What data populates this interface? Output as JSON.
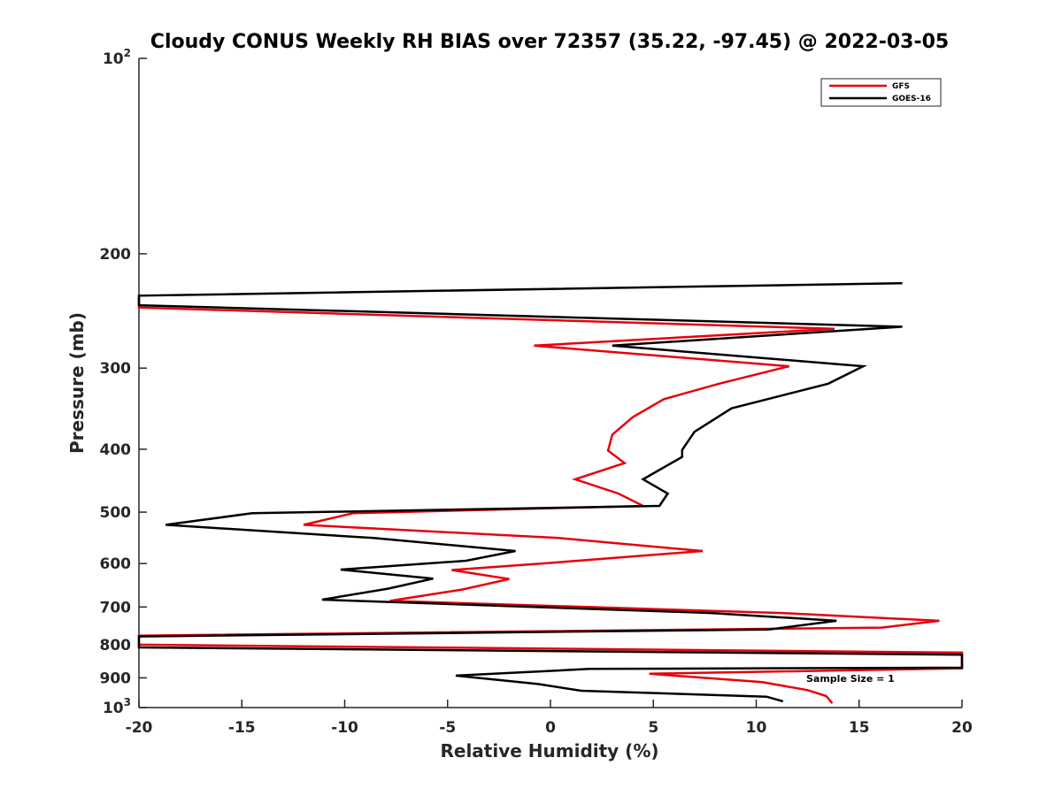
{
  "chart_data": {
    "type": "line",
    "title": "Cloudy CONUS Weekly RH BIAS over 72357 (35.22, -97.45) @ 2022-03-05",
    "xlabel": "Relative Humidity (%)",
    "ylabel": "Pressure (mb)",
    "xlim": [
      -20,
      20
    ],
    "ylim": [
      100,
      1000
    ],
    "y_scale": "log",
    "y_reversed": true,
    "grid": false,
    "legend_position": "top-right",
    "x_ticks": [
      "-20",
      "-15",
      "-10",
      "-5",
      "0",
      "5",
      "10",
      "15",
      "20"
    ],
    "y_ticks": [
      {
        "value": 100,
        "base": "10",
        "exp": "2"
      },
      {
        "value": 200,
        "label": "200"
      },
      {
        "value": 300,
        "label": "300"
      },
      {
        "value": 400,
        "label": "400"
      },
      {
        "value": 500,
        "label": "500"
      },
      {
        "value": 600,
        "label": "600"
      },
      {
        "value": 700,
        "label": "700"
      },
      {
        "value": 800,
        "label": "800"
      },
      {
        "value": 900,
        "label": "900"
      },
      {
        "value": 1000,
        "base": "10",
        "exp": "3"
      }
    ],
    "annotation": "Sample Size = 1",
    "series": [
      {
        "name": "GFS",
        "color": "#e8000b",
        "points": [
          [
            -20,
            232
          ],
          [
            -20,
            242
          ],
          [
            13.8,
            261
          ],
          [
            -0.8,
            277
          ],
          [
            11.6,
            298
          ],
          [
            8.2,
            317
          ],
          [
            5.5,
            335
          ],
          [
            4.0,
            357
          ],
          [
            3.0,
            380
          ],
          [
            2.8,
            402
          ],
          [
            3.6,
            420
          ],
          [
            1.2,
            445
          ],
          [
            3.3,
            468
          ],
          [
            4.5,
            489
          ],
          [
            -9.6,
            502
          ],
          [
            -12.0,
            523
          ],
          [
            0.4,
            548
          ],
          [
            7.4,
            574
          ],
          [
            -0.1,
            599
          ],
          [
            -4.8,
            614
          ],
          [
            -2.0,
            634
          ],
          [
            -4.3,
            658
          ],
          [
            -7.8,
            685
          ],
          [
            11.2,
            715
          ],
          [
            18.9,
            735
          ],
          [
            16.1,
            753
          ],
          [
            -20,
            775
          ],
          [
            -20,
            800
          ],
          [
            20,
            823
          ],
          [
            20,
            870
          ],
          [
            4.8,
            887
          ],
          [
            10.3,
            914
          ],
          [
            12.5,
            940
          ],
          [
            13.4,
            960
          ],
          [
            13.7,
            985
          ]
        ]
      },
      {
        "name": "GOES-16",
        "color": "#000000",
        "points": [
          [
            17.1,
            222
          ],
          [
            -20,
            232
          ],
          [
            -20,
            240
          ],
          [
            17.1,
            259
          ],
          [
            3.0,
            277
          ],
          [
            15.2,
            298
          ],
          [
            13.5,
            317
          ],
          [
            8.8,
            346
          ],
          [
            7.0,
            376
          ],
          [
            6.4,
            401
          ],
          [
            6.4,
            411
          ],
          [
            4.5,
            445
          ],
          [
            5.7,
            468
          ],
          [
            5.3,
            489
          ],
          [
            -14.5,
            502
          ],
          [
            -18.7,
            523
          ],
          [
            -8.6,
            548
          ],
          [
            -1.7,
            574
          ],
          [
            -4.1,
            594
          ],
          [
            -10.2,
            613
          ],
          [
            -5.7,
            633
          ],
          [
            -7.9,
            656
          ],
          [
            -11.1,
            682
          ],
          [
            7.8,
            715
          ],
          [
            13.9,
            735
          ],
          [
            10.6,
            758
          ],
          [
            -20,
            777
          ],
          [
            -20,
            808
          ],
          [
            20,
            829
          ],
          [
            20,
            868
          ],
          [
            1.9,
            872
          ],
          [
            -4.6,
            893
          ],
          [
            -0.6,
            920
          ],
          [
            1.5,
            942
          ],
          [
            10.5,
            962
          ],
          [
            11.3,
            978
          ]
        ]
      }
    ]
  }
}
